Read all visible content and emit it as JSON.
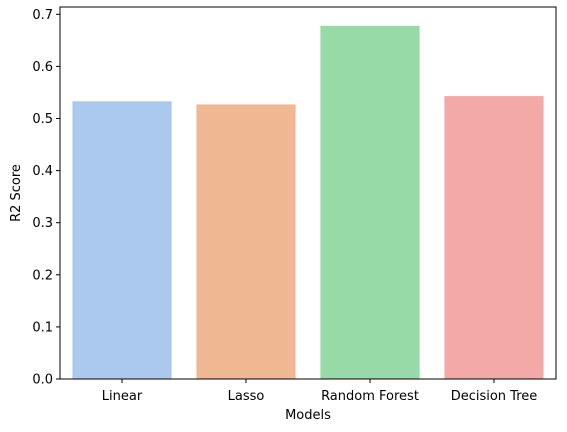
{
  "chart_data": {
    "type": "bar",
    "title": "",
    "xlabel": "Models",
    "ylabel": "R2 Score",
    "categories": [
      "Linear",
      "Lasso",
      "Random Forest",
      "Decision Tree"
    ],
    "values": [
      0.533,
      0.527,
      0.678,
      0.543
    ],
    "colors": [
      "#abc9ee",
      "#f0b892",
      "#98d9a8",
      "#f2a9a7"
    ],
    "ylim": [
      0,
      0.714
    ],
    "yticks": [
      0.0,
      0.1,
      0.2,
      0.3,
      0.4,
      0.5,
      0.6,
      0.7
    ],
    "ytick_labels": [
      "0.0",
      "0.1",
      "0.2",
      "0.3",
      "0.4",
      "0.5",
      "0.6",
      "0.7"
    ],
    "grid": false,
    "legend": "none"
  }
}
